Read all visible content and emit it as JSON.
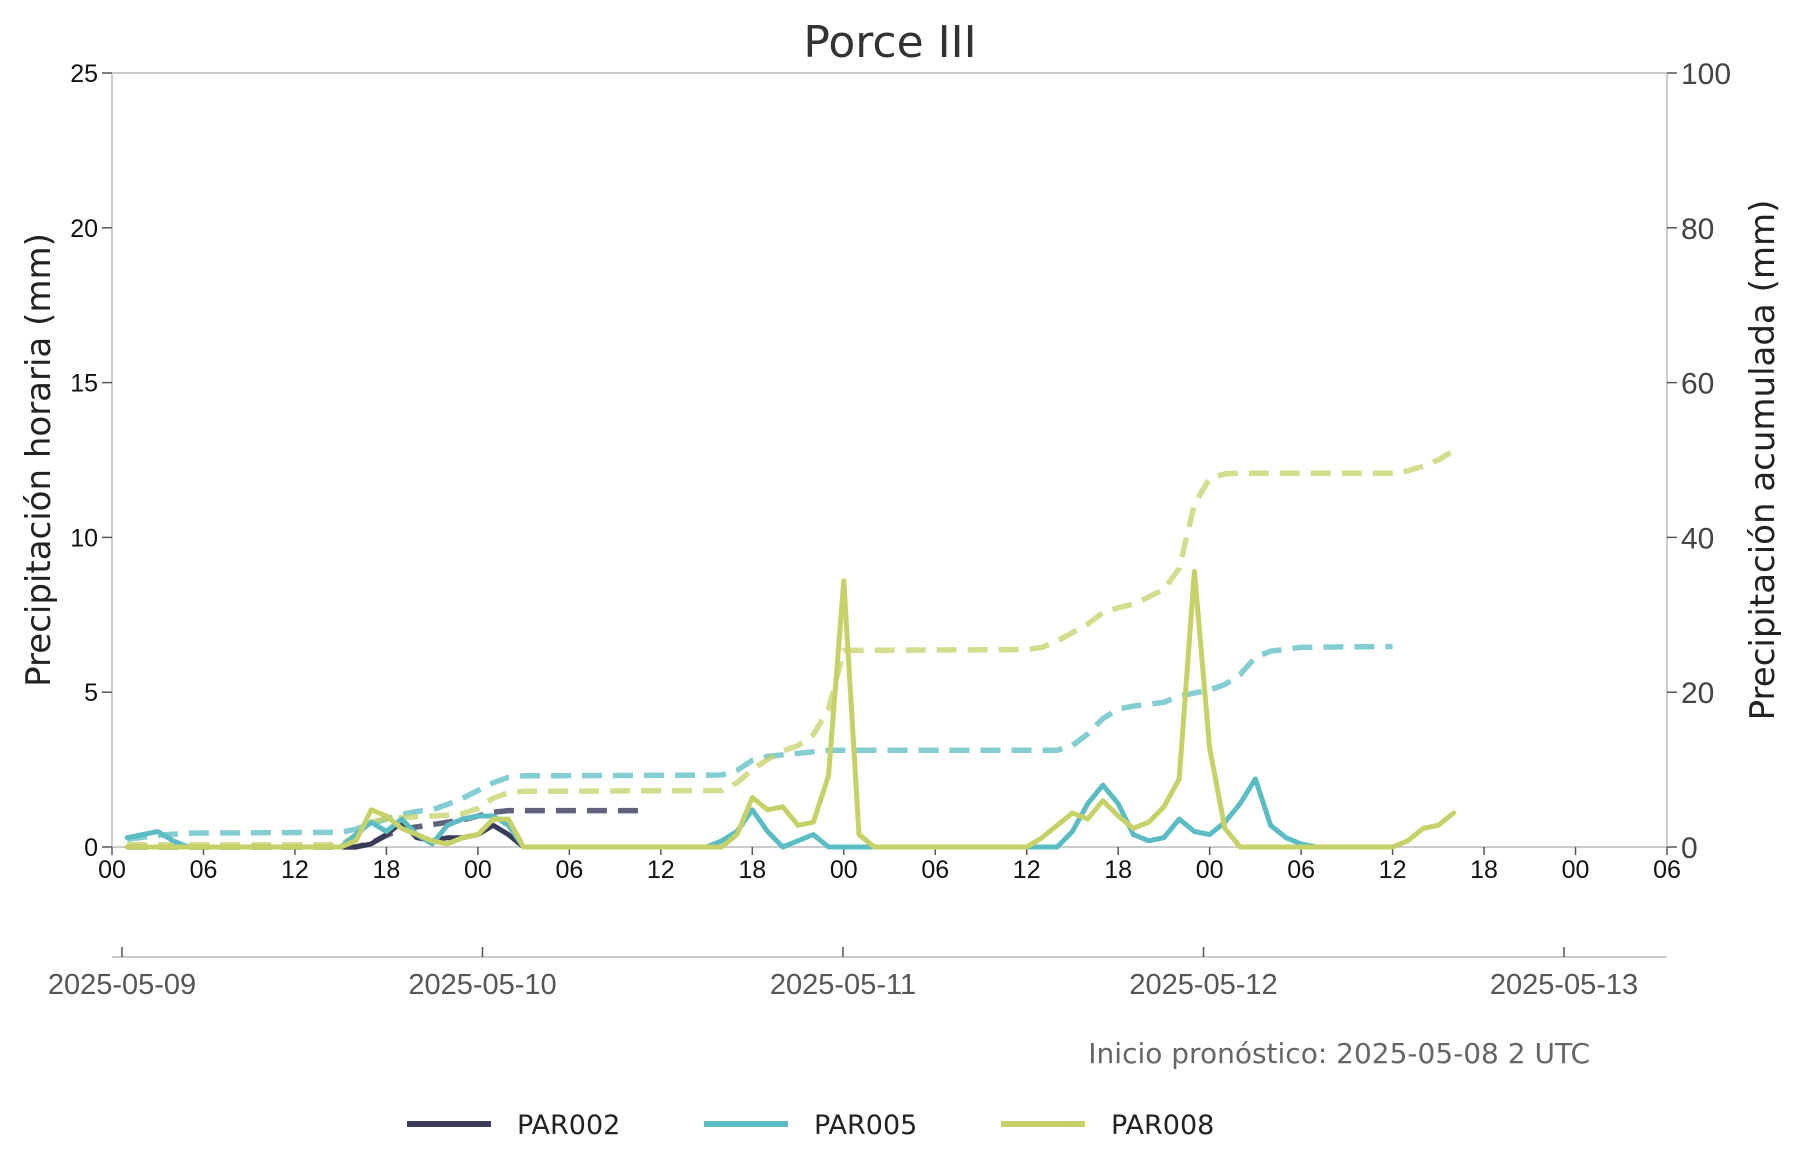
{
  "chart_data": {
    "type": "line",
    "title": "Porce III",
    "ylabel_left": "Precipitación horaria (mm)",
    "ylabel_right": "Precipitación acumulada (mm)",
    "ylim_left": [
      0,
      25
    ],
    "ylim_right": [
      0,
      100
    ],
    "yticks_left": [
      "0",
      "5",
      "10",
      "15",
      "20",
      "25"
    ],
    "yticks_right": [
      "0",
      "20",
      "40",
      "60",
      "80",
      "100"
    ],
    "x_start": "2025-05-09 00:00",
    "x_end": "2025-05-13 06:00",
    "hour_ticks": [
      "00",
      "06",
      "12",
      "18",
      "00",
      "06",
      "12",
      "18",
      "00",
      "06",
      "12",
      "18",
      "00",
      "06",
      "12",
      "18",
      "00",
      "06"
    ],
    "date_ticks": [
      "2025-05-09",
      "2025-05-10",
      "2025-05-11",
      "2025-05-12",
      "2025-05-13"
    ],
    "grid": false,
    "annotation": "Inicio pronóstico: 2025-05-08 2 UTC",
    "legend_position": "bottom",
    "legend": [
      "PAR002",
      "PAR005",
      "PAR008"
    ],
    "series": [
      {
        "name": "PAR002",
        "color": "#383c5a",
        "hourly": [
          [
            "2025-05-09 01:00",
            0
          ],
          [
            "2025-05-09 16:00",
            0
          ],
          [
            "2025-05-09 17:00",
            0.1
          ],
          [
            "2025-05-09 18:00",
            0.4
          ],
          [
            "2025-05-09 19:00",
            0.8
          ],
          [
            "2025-05-09 20:00",
            0.3
          ],
          [
            "2025-05-09 21:00",
            0.2
          ],
          [
            "2025-05-09 22:00",
            0.3
          ],
          [
            "2025-05-09 23:00",
            0.3
          ],
          [
            "2025-05-10 00:00",
            0.4
          ],
          [
            "2025-05-10 01:00",
            0.7
          ],
          [
            "2025-05-10 02:00",
            0.4
          ],
          [
            "2025-05-10 03:00",
            0
          ]
        ],
        "accumulated": [
          [
            "2025-05-09 01:00",
            0
          ],
          [
            "2025-05-09 16:00",
            0
          ],
          [
            "2025-05-09 17:00",
            0.5
          ],
          [
            "2025-05-09 18:00",
            1.5
          ],
          [
            "2025-05-09 19:00",
            2.3
          ],
          [
            "2025-05-09 20:00",
            2.6
          ],
          [
            "2025-05-09 21:00",
            2.9
          ],
          [
            "2025-05-09 22:00",
            3.2
          ],
          [
            "2025-05-09 23:00",
            3.5
          ],
          [
            "2025-05-10 00:00",
            4.0
          ],
          [
            "2025-05-10 01:00",
            4.5
          ],
          [
            "2025-05-10 02:00",
            4.7
          ],
          [
            "2025-05-10 03:00",
            4.7
          ],
          [
            "2025-05-10 11:00",
            4.7
          ]
        ]
      },
      {
        "name": "PAR005",
        "color": "#5bbcc4",
        "hourly": [
          [
            "2025-05-09 01:00",
            0.3
          ],
          [
            "2025-05-09 03:00",
            0.5
          ],
          [
            "2025-05-09 04:00",
            0.2
          ],
          [
            "2025-05-09 05:00",
            0
          ],
          [
            "2025-05-09 15:00",
            0
          ],
          [
            "2025-05-09 16:00",
            0.4
          ],
          [
            "2025-05-09 17:00",
            0.8
          ],
          [
            "2025-05-09 18:00",
            0.5
          ],
          [
            "2025-05-09 19:00",
            0.9
          ],
          [
            "2025-05-09 20:00",
            0.4
          ],
          [
            "2025-05-09 21:00",
            0.1
          ],
          [
            "2025-05-09 22:00",
            0.7
          ],
          [
            "2025-05-09 23:00",
            0.9
          ],
          [
            "2025-05-10 00:00",
            1.0
          ],
          [
            "2025-05-10 01:00",
            1.0
          ],
          [
            "2025-05-10 02:00",
            0.7
          ],
          [
            "2025-05-10 03:00",
            0
          ],
          [
            "2025-05-10 15:00",
            0
          ],
          [
            "2025-05-10 16:00",
            0.2
          ],
          [
            "2025-05-10 17:00",
            0.5
          ],
          [
            "2025-05-10 18:00",
            1.2
          ],
          [
            "2025-05-10 19:00",
            0.5
          ],
          [
            "2025-05-10 20:00",
            0
          ],
          [
            "2025-05-10 21:00",
            0.2
          ],
          [
            "2025-05-10 22:00",
            0.4
          ],
          [
            "2025-05-10 23:00",
            0
          ],
          [
            "2025-05-11 14:00",
            0
          ],
          [
            "2025-05-11 15:00",
            0.5
          ],
          [
            "2025-05-11 16:00",
            1.4
          ],
          [
            "2025-05-11 17:00",
            2.0
          ],
          [
            "2025-05-11 18:00",
            1.4
          ],
          [
            "2025-05-11 19:00",
            0.4
          ],
          [
            "2025-05-11 20:00",
            0.2
          ],
          [
            "2025-05-11 21:00",
            0.3
          ],
          [
            "2025-05-11 22:00",
            0.9
          ],
          [
            "2025-05-11 23:00",
            0.5
          ],
          [
            "2025-05-12 00:00",
            0.4
          ],
          [
            "2025-05-12 01:00",
            0.8
          ],
          [
            "2025-05-12 02:00",
            1.4
          ],
          [
            "2025-05-12 03:00",
            2.2
          ],
          [
            "2025-05-12 04:00",
            0.7
          ],
          [
            "2025-05-12 05:00",
            0.3
          ],
          [
            "2025-05-12 06:00",
            0.1
          ],
          [
            "2025-05-12 07:00",
            0
          ],
          [
            "2025-05-12 12:00",
            0
          ]
        ],
        "accumulated": [
          [
            "2025-05-09 01:00",
            1.0
          ],
          [
            "2025-05-09 03:00",
            1.5
          ],
          [
            "2025-05-09 05:00",
            1.8
          ],
          [
            "2025-05-09 15:00",
            1.9
          ],
          [
            "2025-05-09 16:00",
            2.3
          ],
          [
            "2025-05-09 17:00",
            3.0
          ],
          [
            "2025-05-09 18:00",
            3.6
          ],
          [
            "2025-05-09 19:00",
            4.2
          ],
          [
            "2025-05-09 20:00",
            4.6
          ],
          [
            "2025-05-09 21:00",
            4.8
          ],
          [
            "2025-05-09 22:00",
            5.5
          ],
          [
            "2025-05-09 23:00",
            6.3
          ],
          [
            "2025-05-10 00:00",
            7.3
          ],
          [
            "2025-05-10 01:00",
            8.3
          ],
          [
            "2025-05-10 02:00",
            9.0
          ],
          [
            "2025-05-10 03:00",
            9.2
          ],
          [
            "2025-05-10 16:00",
            9.3
          ],
          [
            "2025-05-10 17:00",
            9.9
          ],
          [
            "2025-05-10 18:00",
            11.2
          ],
          [
            "2025-05-10 19:00",
            11.7
          ],
          [
            "2025-05-10 20:00",
            11.9
          ],
          [
            "2025-05-10 22:00",
            12.3
          ],
          [
            "2025-05-10 23:00",
            12.5
          ],
          [
            "2025-05-11 14:00",
            12.5
          ],
          [
            "2025-05-11 15:00",
            13.1
          ],
          [
            "2025-05-11 16:00",
            14.6
          ],
          [
            "2025-05-11 17:00",
            16.6
          ],
          [
            "2025-05-11 18:00",
            17.8
          ],
          [
            "2025-05-11 19:00",
            18.2
          ],
          [
            "2025-05-11 21:00",
            18.7
          ],
          [
            "2025-05-11 22:00",
            19.5
          ],
          [
            "2025-05-12 00:00",
            20.3
          ],
          [
            "2025-05-12 01:00",
            21.0
          ],
          [
            "2025-05-12 02:00",
            22.3
          ],
          [
            "2025-05-12 03:00",
            24.5
          ],
          [
            "2025-05-12 04:00",
            25.3
          ],
          [
            "2025-05-12 06:00",
            25.8
          ],
          [
            "2025-05-12 12:00",
            25.9
          ]
        ]
      },
      {
        "name": "PAR008",
        "color": "#c6d167",
        "hourly": [
          [
            "2025-05-09 01:00",
            0
          ],
          [
            "2025-05-09 15:00",
            0
          ],
          [
            "2025-05-09 16:00",
            0.2
          ],
          [
            "2025-05-09 17:00",
            1.2
          ],
          [
            "2025-05-09 18:00",
            1.0
          ],
          [
            "2025-05-09 19:00",
            0.6
          ],
          [
            "2025-05-09 20:00",
            0.4
          ],
          [
            "2025-05-09 21:00",
            0.2
          ],
          [
            "2025-05-09 22:00",
            0.1
          ],
          [
            "2025-05-09 23:00",
            0.3
          ],
          [
            "2025-05-10 00:00",
            0.4
          ],
          [
            "2025-05-10 01:00",
            0.9
          ],
          [
            "2025-05-10 02:00",
            0.9
          ],
          [
            "2025-05-10 03:00",
            0
          ],
          [
            "2025-05-10 16:00",
            0
          ],
          [
            "2025-05-10 17:00",
            0.4
          ],
          [
            "2025-05-10 18:00",
            1.6
          ],
          [
            "2025-05-10 19:00",
            1.2
          ],
          [
            "2025-05-10 20:00",
            1.3
          ],
          [
            "2025-05-10 21:00",
            0.7
          ],
          [
            "2025-05-10 22:00",
            0.8
          ],
          [
            "2025-05-10 23:00",
            2.3
          ],
          [
            "2025-05-11 00:00",
            8.6
          ],
          [
            "2025-05-11 01:00",
            0.4
          ],
          [
            "2025-05-11 02:00",
            0
          ],
          [
            "2025-05-11 12:00",
            0
          ],
          [
            "2025-05-11 13:00",
            0.3
          ],
          [
            "2025-05-11 14:00",
            0.7
          ],
          [
            "2025-05-11 15:00",
            1.1
          ],
          [
            "2025-05-11 16:00",
            0.9
          ],
          [
            "2025-05-11 17:00",
            1.5
          ],
          [
            "2025-05-11 18:00",
            1.0
          ],
          [
            "2025-05-11 19:00",
            0.6
          ],
          [
            "2025-05-11 20:00",
            0.8
          ],
          [
            "2025-05-11 21:00",
            1.3
          ],
          [
            "2025-05-11 22:00",
            2.2
          ],
          [
            "2025-05-11 23:00",
            8.9
          ],
          [
            "2025-05-12 00:00",
            3.2
          ],
          [
            "2025-05-12 01:00",
            0.6
          ],
          [
            "2025-05-12 02:00",
            0
          ],
          [
            "2025-05-12 12:00",
            0
          ],
          [
            "2025-05-12 13:00",
            0.2
          ],
          [
            "2025-05-12 14:00",
            0.6
          ],
          [
            "2025-05-12 15:00",
            0.7
          ],
          [
            "2025-05-12 16:00",
            1.1
          ]
        ],
        "accumulated": [
          [
            "2025-05-09 01:00",
            0.3
          ],
          [
            "2025-05-09 15:00",
            0.3
          ],
          [
            "2025-05-09 16:00",
            1.5
          ],
          [
            "2025-05-09 17:00",
            3.2
          ],
          [
            "2025-05-09 18:00",
            3.7
          ],
          [
            "2025-05-09 19:00",
            3.8
          ],
          [
            "2025-05-09 20:00",
            3.9
          ],
          [
            "2025-05-09 21:00",
            4.0
          ],
          [
            "2025-05-09 22:00",
            4.1
          ],
          [
            "2025-05-09 23:00",
            4.3
          ],
          [
            "2025-05-10 00:00",
            5.0
          ],
          [
            "2025-05-10 01:00",
            6.3
          ],
          [
            "2025-05-10 02:00",
            7.0
          ],
          [
            "2025-05-10 03:00",
            7.2
          ],
          [
            "2025-05-10 16:00",
            7.3
          ],
          [
            "2025-05-10 17:00",
            8.3
          ],
          [
            "2025-05-10 18:00",
            10.0
          ],
          [
            "2025-05-10 19:00",
            11.3
          ],
          [
            "2025-05-10 20:00",
            12.4
          ],
          [
            "2025-05-10 21:00",
            13.1
          ],
          [
            "2025-05-10 22:00",
            14.5
          ],
          [
            "2025-05-10 23:00",
            17.8
          ],
          [
            "2025-05-11 00:00",
            25.4
          ],
          [
            "2025-05-11 12:00",
            25.5
          ],
          [
            "2025-05-11 13:00",
            25.8
          ],
          [
            "2025-05-11 14:00",
            26.6
          ],
          [
            "2025-05-11 15:00",
            27.7
          ],
          [
            "2025-05-11 16:00",
            28.8
          ],
          [
            "2025-05-11 17:00",
            30.3
          ],
          [
            "2025-05-11 18:00",
            30.9
          ],
          [
            "2025-05-11 19:00",
            31.4
          ],
          [
            "2025-05-11 20:00",
            32.3
          ],
          [
            "2025-05-11 21:00",
            33.3
          ],
          [
            "2025-05-11 22:00",
            36.0
          ],
          [
            "2025-05-11 23:00",
            44.3
          ],
          [
            "2025-05-12 00:00",
            47.6
          ],
          [
            "2025-05-12 01:00",
            48.2
          ],
          [
            "2025-05-12 02:00",
            48.3
          ],
          [
            "2025-05-12 12:00",
            48.3
          ],
          [
            "2025-05-12 13:00",
            48.6
          ],
          [
            "2025-05-12 14:00",
            49.2
          ],
          [
            "2025-05-12 15:00",
            50.0
          ],
          [
            "2025-05-12 16:00",
            51.2
          ]
        ]
      }
    ]
  }
}
